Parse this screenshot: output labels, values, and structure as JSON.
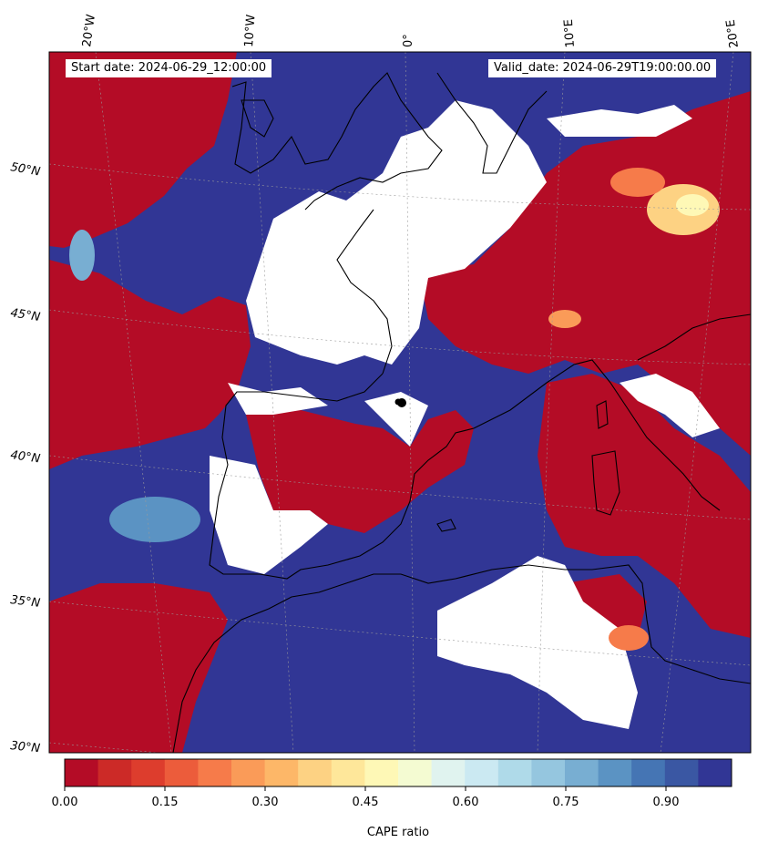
{
  "annotations": {
    "start_date": "Start date: 2024-06-29_12:00:00",
    "valid_date": "Valid_date: 2024-06-29T19:00:00.00"
  },
  "longitude_labels": [
    "20°W",
    "10°W",
    "0°",
    "10°E",
    "20°E"
  ],
  "latitude_labels": [
    "50°N",
    "45°N",
    "40°N",
    "35°N",
    "30°N"
  ],
  "colorbar": {
    "label": "CAPE ratio",
    "tick_labels": [
      "0.00",
      "0.15",
      "0.30",
      "0.45",
      "0.60",
      "0.75",
      "0.90"
    ],
    "range": [
      0.0,
      1.0
    ],
    "levels": 20,
    "colormap": "RdYlBu",
    "colors": [
      "#b40c26",
      "#cc2a27",
      "#dd3d2d",
      "#ec5c3b",
      "#f67b4a",
      "#fa9b58",
      "#fdb768",
      "#fdd283",
      "#fee79a",
      "#fef8b6",
      "#f4fbd2",
      "#e0f3ef",
      "#cbe9f2",
      "#afdae9",
      "#95c6df",
      "#78aed2",
      "#5b93c3",
      "#4575b4",
      "#3a57a3",
      "#313695"
    ]
  },
  "map": {
    "projection": "oblique conic, Western Europe / Mediterranean",
    "no_data_color": "#ffffff",
    "coastline_color": "#000000",
    "gridline_style": "dotted light gray"
  }
}
